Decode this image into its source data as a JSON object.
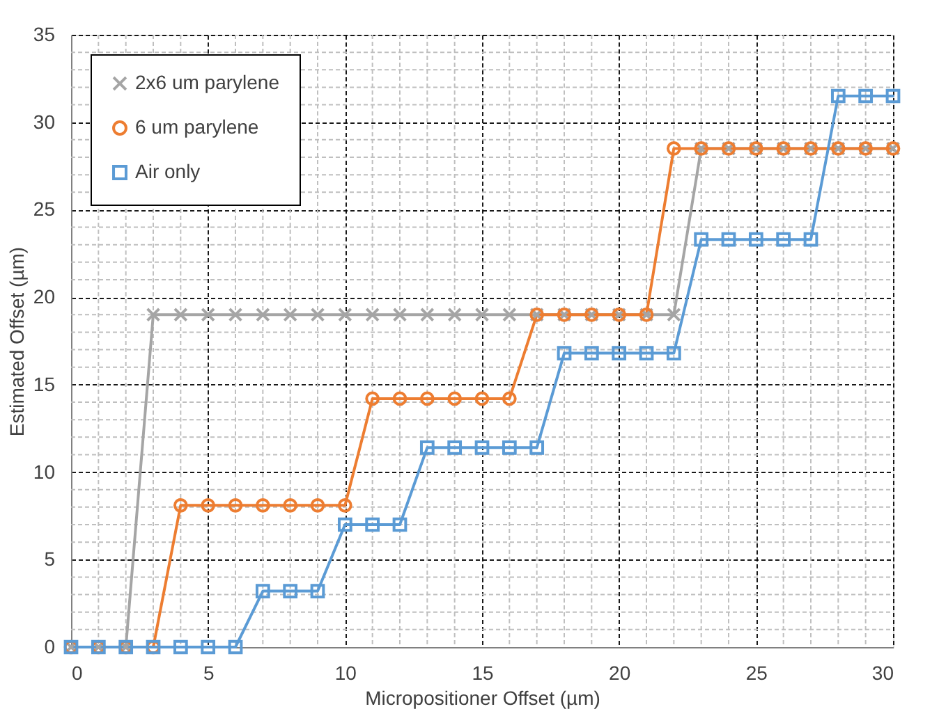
{
  "chart_data": {
    "type": "line",
    "xlabel": "Micropositioner Offset (µm)",
    "ylabel": "Estimated Offset (µm)",
    "x": [
      0,
      1,
      2,
      3,
      4,
      5,
      6,
      7,
      8,
      9,
      10,
      11,
      12,
      13,
      14,
      15,
      16,
      17,
      18,
      19,
      20,
      21,
      22,
      23,
      24,
      25,
      26,
      27,
      28,
      29,
      30
    ],
    "series": [
      {
        "name": "2x6 um parylene",
        "color": "#a5a5a5",
        "marker": "cross",
        "values": [
          0,
          0,
          0,
          19,
          19,
          19,
          19,
          19,
          19,
          19,
          19,
          19,
          19,
          19,
          19,
          19,
          19,
          19,
          19,
          19,
          19,
          19,
          19,
          28.5,
          28.5,
          28.5,
          28.5,
          28.5,
          28.5,
          28.5,
          28.5
        ]
      },
      {
        "name": "6 um parylene",
        "color": "#ed7d31",
        "marker": "circle",
        "values": [
          0,
          0,
          0,
          0,
          8.1,
          8.1,
          8.1,
          8.1,
          8.1,
          8.1,
          8.1,
          14.2,
          14.2,
          14.2,
          14.2,
          14.2,
          14.2,
          19,
          19,
          19,
          19,
          19,
          28.5,
          28.5,
          28.5,
          28.5,
          28.5,
          28.5,
          28.5,
          28.5,
          28.5
        ]
      },
      {
        "name": "Air only",
        "color": "#5b9bd5",
        "marker": "square",
        "values": [
          0,
          0,
          0,
          0,
          0,
          0,
          0,
          3.2,
          3.2,
          3.2,
          7,
          7,
          7,
          11.4,
          11.4,
          11.4,
          11.4,
          11.4,
          16.8,
          16.8,
          16.8,
          16.8,
          16.8,
          23.3,
          23.3,
          23.3,
          23.3,
          23.3,
          31.5,
          31.5,
          31.5
        ]
      }
    ],
    "xlim": [
      0,
      30
    ],
    "xticks": [
      0,
      5,
      10,
      15,
      20,
      25,
      30
    ],
    "ylim": [
      0,
      35
    ],
    "yticks": [
      0,
      5,
      10,
      15,
      20,
      25,
      30,
      35
    ],
    "grid": true,
    "legend": "top left",
    "line_style": "solid"
  }
}
